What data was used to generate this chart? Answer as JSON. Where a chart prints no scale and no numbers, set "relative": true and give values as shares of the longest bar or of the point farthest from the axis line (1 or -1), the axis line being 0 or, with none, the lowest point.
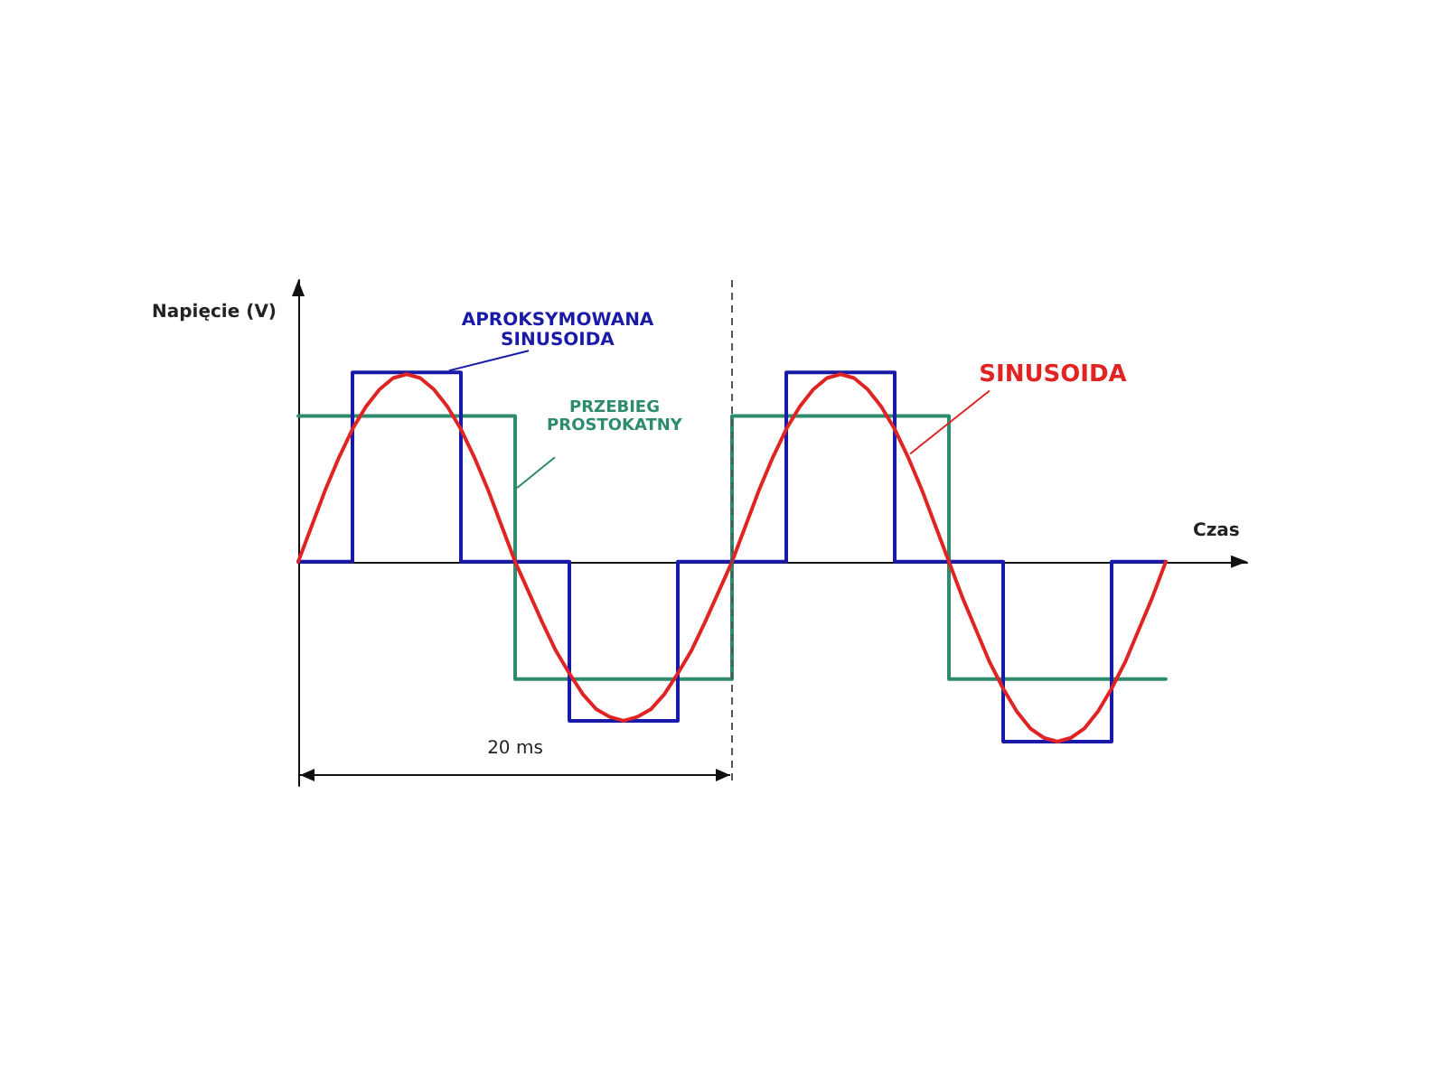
{
  "chart_data": {
    "type": "line",
    "relative": true,
    "xlabel": "Czas",
    "ylabel": "Napięcie (V)",
    "grid": false,
    "legend": false,
    "categories": [
      null,
      null,
      null,
      null,
      null,
      null,
      null,
      null,
      null,
      null,
      null,
      null,
      null,
      null,
      null,
      null,
      null,
      null,
      null,
      null,
      null,
      null,
      null,
      null,
      null,
      null,
      null,
      null,
      null,
      null,
      null,
      null,
      null,
      null,
      null,
      null,
      null,
      null,
      null,
      null,
      null,
      null,
      null,
      null,
      null,
      null,
      null,
      null,
      null,
      null,
      null,
      null,
      null,
      null,
      null,
      null,
      null,
      null,
      null,
      null,
      null,
      null,
      null,
      null,
      null,
      null,
      null,
      null,
      null,
      null,
      null
    ],
    "series": [
      {
        "name": "PRZEBIEG PROSTOKATNY",
        "type": "step",
        "color": "#2e8b6e",
        "values": [
          0.77,
          0.77,
          0.77,
          0.77,
          0.77,
          0.77,
          0.77,
          0.77,
          0.77,
          0.77,
          0.77,
          0.77,
          0.77,
          0.77,
          0.77,
          0.77,
          -0.62,
          -0.62,
          -0.62,
          -0.62,
          -0.62,
          -0.62,
          -0.62,
          -0.62,
          -0.62,
          -0.62,
          -0.62,
          -0.62,
          -0.62,
          -0.62,
          -0.62,
          -0.62,
          0.77,
          0.77,
          0.77,
          0.77,
          0.77,
          0.77,
          0.77,
          0.77,
          0.77,
          0.77,
          0.77,
          0.77,
          0.77,
          0.77,
          0.77,
          0.77,
          -0.62,
          -0.62,
          -0.62,
          -0.62,
          -0.62,
          -0.62,
          -0.62,
          -0.62,
          -0.62,
          -0.62,
          -0.62,
          -0.62,
          -0.62,
          -0.62,
          -0.62,
          -0.62,
          -0.62,
          null,
          null,
          null,
          null,
          null,
          null
        ]
      },
      {
        "name": "APROKSYMOWANA SINUSOIDA",
        "type": "step",
        "color": "#1a1aa8",
        "values": [
          0,
          0,
          0,
          0,
          1,
          1,
          1,
          1,
          1,
          1,
          1,
          1,
          0,
          0,
          0,
          0,
          0,
          0,
          0,
          0,
          -0.84,
          -0.84,
          -0.84,
          -0.84,
          -0.84,
          -0.84,
          -0.84,
          -0.84,
          0,
          0,
          0,
          0,
          0,
          0,
          0,
          0,
          1,
          1,
          1,
          1,
          1,
          1,
          1,
          1,
          0,
          0,
          0,
          0,
          0,
          0,
          0,
          0,
          -0.95,
          -0.95,
          -0.95,
          -0.95,
          -0.95,
          -0.95,
          -0.95,
          -0.95,
          0,
          0,
          0,
          0,
          0,
          null,
          null,
          null,
          null,
          null,
          null
        ]
      },
      {
        "name": "SINUSOIDA",
        "color": "#e02424",
        "values": [
          0,
          0.19,
          0.38,
          0.55,
          0.7,
          0.82,
          0.91,
          0.97,
          0.99,
          0.97,
          0.91,
          0.82,
          0.7,
          0.55,
          0.38,
          0.19,
          0,
          -0.16,
          -0.32,
          -0.47,
          -0.59,
          -0.7,
          -0.78,
          -0.82,
          -0.84,
          -0.82,
          -0.78,
          -0.7,
          -0.59,
          -0.47,
          -0.32,
          -0.16,
          0,
          0.19,
          0.38,
          0.55,
          0.7,
          0.82,
          0.91,
          0.97,
          0.99,
          0.97,
          0.91,
          0.82,
          0.7,
          0.55,
          0.38,
          0.19,
          0,
          -0.19,
          -0.36,
          -0.53,
          -0.67,
          -0.79,
          -0.88,
          -0.93,
          -0.95,
          -0.93,
          -0.88,
          -0.79,
          -0.67,
          -0.53,
          -0.36,
          -0.19,
          0,
          null,
          null,
          null,
          null,
          null,
          null
        ]
      }
    ],
    "annotations": [
      "20 ms"
    ]
  }
}
